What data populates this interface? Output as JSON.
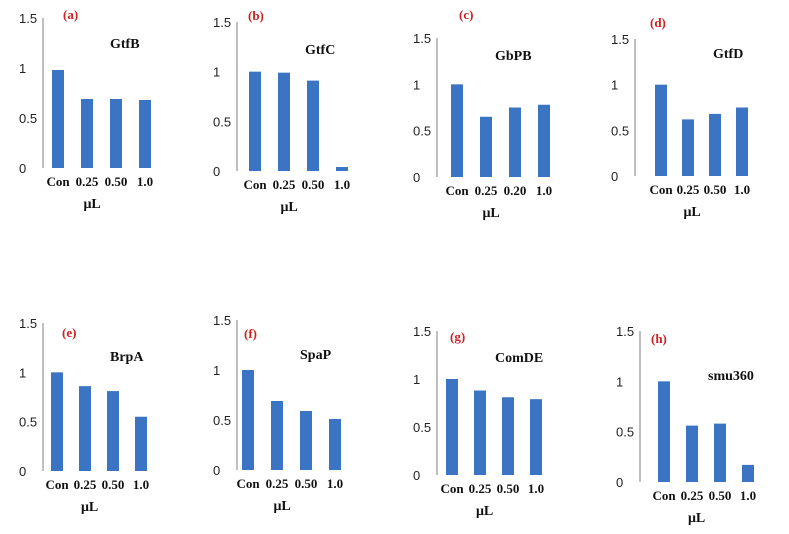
{
  "colors": {
    "bar": "#3b74c2",
    "panel_label": "#cc2222",
    "axis": "#7f7f7f"
  },
  "chart_data": [
    {
      "type": "bar",
      "panel": "(a)",
      "title": "GtfB",
      "categories": [
        "Con",
        "0.25",
        "0.50",
        "1.0"
      ],
      "values": [
        0.98,
        0.69,
        0.69,
        0.68
      ],
      "xlabel": "μL",
      "ylabel": "",
      "yticks": [
        "0",
        "0.5",
        "1",
        "1.5"
      ],
      "ylim": [
        0,
        1.5
      ]
    },
    {
      "type": "bar",
      "panel": "(b)",
      "title": "GtfC",
      "categories": [
        "Con",
        "0.25",
        "0.50",
        "1.0"
      ],
      "values": [
        1.0,
        0.99,
        0.91,
        0.04
      ],
      "xlabel": "μL",
      "ylabel": "",
      "yticks": [
        "0",
        "0.5",
        "1",
        "1.5"
      ],
      "ylim": [
        0,
        1.5
      ]
    },
    {
      "type": "bar",
      "panel": "(c)",
      "title": "GbPB",
      "categories": [
        "Con",
        "0.25",
        "0.20",
        "1.0"
      ],
      "values": [
        1.0,
        0.65,
        0.75,
        0.78
      ],
      "xlabel": "μL",
      "ylabel": "",
      "yticks": [
        "0",
        "0.5",
        "1",
        "1.5"
      ],
      "ylim": [
        0,
        1.5
      ]
    },
    {
      "type": "bar",
      "panel": "(d)",
      "title": "GtfD",
      "categories": [
        "Con",
        "0.25",
        "0.50",
        "1.0"
      ],
      "values": [
        1.0,
        0.62,
        0.68,
        0.75
      ],
      "xlabel": "μL",
      "ylabel": "",
      "yticks": [
        "0",
        "0.5",
        "1",
        "1.5"
      ],
      "ylim": [
        0,
        1.5
      ]
    },
    {
      "type": "bar",
      "panel": "(e)",
      "title": "BrpA",
      "categories": [
        "Con",
        "0.25",
        "0.50",
        "1.0"
      ],
      "values": [
        1.0,
        0.86,
        0.81,
        0.55
      ],
      "xlabel": "μL",
      "ylabel": "",
      "yticks": [
        "0",
        "0.5",
        "1",
        "1.5"
      ],
      "ylim": [
        0,
        1.5
      ]
    },
    {
      "type": "bar",
      "panel": "(f)",
      "title": "SpaP",
      "categories": [
        "Con",
        "0.25",
        "0.50",
        "1.0"
      ],
      "values": [
        1.0,
        0.69,
        0.59,
        0.51
      ],
      "xlabel": "μL",
      "ylabel": "",
      "yticks": [
        "0",
        "0.5",
        "1",
        "1.5"
      ],
      "ylim": [
        0,
        1.5
      ]
    },
    {
      "type": "bar",
      "panel": "(g)",
      "title": "ComDE",
      "categories": [
        "Con",
        "0.25",
        "0.50",
        "1.0"
      ],
      "values": [
        1.0,
        0.88,
        0.81,
        0.79
      ],
      "xlabel": "μL",
      "ylabel": "",
      "yticks": [
        "0",
        "0.5",
        "1",
        "1.5"
      ],
      "ylim": [
        0,
        1.5
      ]
    },
    {
      "type": "bar",
      "panel": "(h)",
      "title": "smu360",
      "categories": [
        "Con",
        "0.25",
        "0.50",
        "1.0"
      ],
      "values": [
        1.0,
        0.56,
        0.58,
        0.17
      ],
      "xlabel": "μL",
      "ylabel": "",
      "yticks": [
        "0",
        "0.5",
        "1",
        "1.5"
      ],
      "ylim": [
        0,
        1.5
      ]
    }
  ]
}
